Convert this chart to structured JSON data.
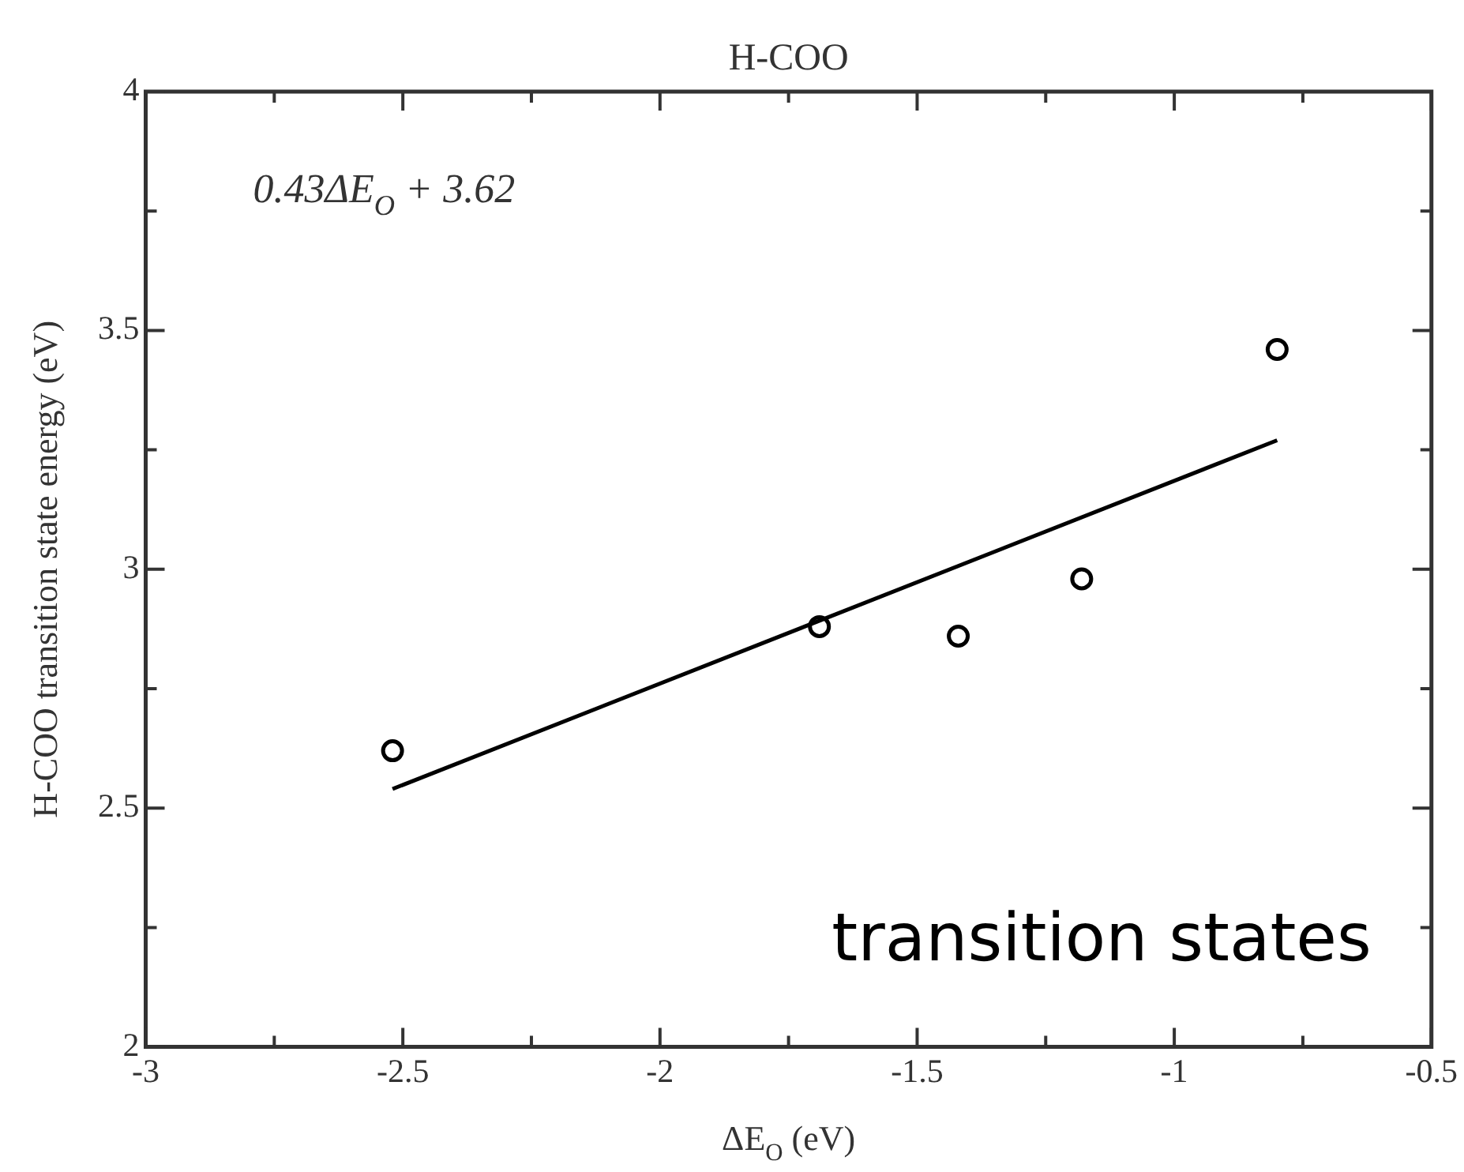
{
  "chart_data": {
    "type": "scatter",
    "title": "H-COO",
    "xlabel": "ΔE$_{O}$ (eV)",
    "ylabel": "H-COO transition state energy (eV)",
    "annotations": [
      "0.43ΔE$_{O}$ + 3.62",
      "transition states"
    ],
    "series": [
      {
        "color": "#000000",
        "marker": "circle",
        "x": [
          -2.52,
          -1.69,
          -1.42,
          -1.18,
          -0.8
        ],
        "values": [
          2.62,
          2.88,
          2.86,
          2.98,
          3.46
        ]
      },
      {
        "type": "line",
        "color": "#000000",
        "marker": "none",
        "line_style": "solid",
        "x": [
          -2.52,
          -0.8
        ],
        "values": [
          2.54,
          3.27
        ]
      }
    ],
    "grid": false,
    "xlim": [
      -3,
      -0.5
    ],
    "xticks": [
      -3,
      {
        "value": -2.75,
        "label": null
      },
      -2.5,
      {
        "value": -2.25,
        "label": null
      },
      -2,
      {
        "value": -1.75,
        "label": null
      },
      -1.5,
      {
        "value": -1.25,
        "label": null
      },
      -1,
      {
        "value": -0.75,
        "label": null
      },
      -0.5
    ],
    "ylim": [
      2,
      4
    ],
    "yticks": [
      2,
      {
        "value": 2.25,
        "label": null
      },
      2.5,
      {
        "value": 2.75,
        "label": null
      },
      3,
      {
        "value": 3.25,
        "label": null
      },
      3.5,
      {
        "value": 3.75,
        "label": null
      },
      4
    ]
  }
}
